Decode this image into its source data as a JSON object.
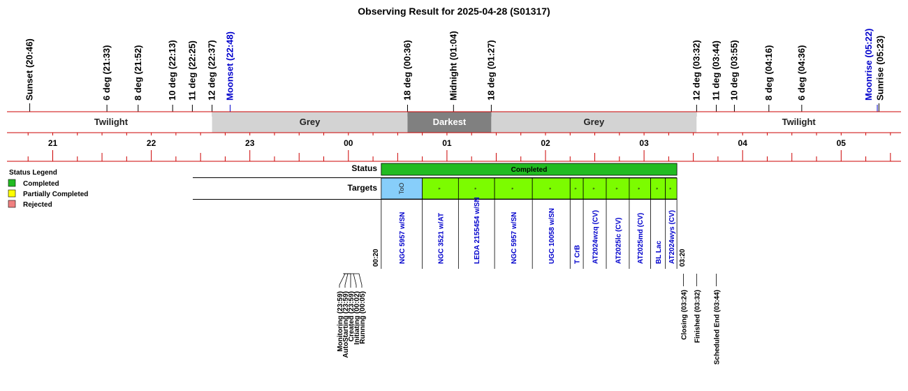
{
  "title": "Observing Result for 2025-04-28 (S01317)",
  "colors": {
    "axis_line": "#cc0000",
    "twilight_bg": "#ffffff",
    "grey_bg": "#d3d3d3",
    "darkest_bg": "#808080",
    "moon_text": "#0000cc",
    "target_text": "#0000cc",
    "completed": "#22bb22",
    "partial": "#ffff00",
    "rejected": "#f08080",
    "target_fill": "#7cfc00",
    "too_fill": "#87cefa"
  },
  "chart_data": {
    "type": "timeline",
    "title": "Observing Result for 2025-04-28 (S01317)",
    "x_axis": {
      "unit": "hour",
      "range": [
        "20:34",
        "05:50"
      ],
      "tick_labels": [
        "21",
        "22",
        "23",
        "00",
        "01",
        "02",
        "03",
        "04",
        "05"
      ]
    },
    "events": [
      {
        "label": "Sunset (20:46)",
        "time": "20:46",
        "kind": "sun"
      },
      {
        "label": "6 deg (21:33)",
        "time": "21:33",
        "kind": "sun"
      },
      {
        "label": "8 deg (21:52)",
        "time": "21:52",
        "kind": "sun"
      },
      {
        "label": "10 deg (22:13)",
        "time": "22:13",
        "kind": "sun"
      },
      {
        "label": "11 deg (22:25)",
        "time": "22:25",
        "kind": "sun"
      },
      {
        "label": "12 deg (22:37)",
        "time": "22:37",
        "kind": "sun"
      },
      {
        "label": "Moonset (22:48)",
        "time": "22:48",
        "kind": "moon"
      },
      {
        "label": "18 deg (00:36)",
        "time": "00:36",
        "kind": "sun"
      },
      {
        "label": "Midnight (01:04)",
        "time": "01:04",
        "kind": "sun"
      },
      {
        "label": "18 deg (01:27)",
        "time": "01:27",
        "kind": "sun"
      },
      {
        "label": "12 deg (03:32)",
        "time": "03:32",
        "kind": "sun"
      },
      {
        "label": "11 deg (03:44)",
        "time": "03:44",
        "kind": "sun"
      },
      {
        "label": "10 deg (03:55)",
        "time": "03:55",
        "kind": "sun"
      },
      {
        "label": "8 deg (04:16)",
        "time": "04:16",
        "kind": "sun"
      },
      {
        "label": "6 deg (04:36)",
        "time": "04:36",
        "kind": "sun"
      },
      {
        "label": "Moonrise (05:22)",
        "time": "05:22",
        "kind": "moon"
      },
      {
        "label": "Sunrise (05:23)",
        "time": "05:23",
        "kind": "sun"
      }
    ],
    "phases": [
      {
        "label": "Twilight",
        "start": "20:34",
        "end": "22:37",
        "style": "twilight"
      },
      {
        "label": "Grey",
        "start": "22:37",
        "end": "00:36",
        "style": "grey"
      },
      {
        "label": "Darkest",
        "start": "00:36",
        "end": "01:27",
        "style": "darkest"
      },
      {
        "label": "Grey",
        "start": "01:27",
        "end": "03:32",
        "style": "grey"
      },
      {
        "label": "Twilight",
        "start": "03:32",
        "end": "05:50",
        "style": "twilight"
      }
    ],
    "status": {
      "label": "Completed",
      "start": "00:20",
      "end": "03:20"
    },
    "targets": [
      {
        "name": "NGC 5957 w/SN",
        "start": "00:20",
        "end": "00:45",
        "marker": "ToO",
        "too": true
      },
      {
        "name": "NGC 3521 w/AT",
        "start": "00:45",
        "end": "01:07",
        "marker": "*",
        "too": false
      },
      {
        "name": "LEDA 2155454 w/SN",
        "start": "01:07",
        "end": "01:29",
        "marker": "*",
        "too": false
      },
      {
        "name": "NGC 5957 w/SN",
        "start": "01:29",
        "end": "01:52",
        "marker": "*",
        "too": false
      },
      {
        "name": "UGC 10058 w/SN",
        "start": "01:52",
        "end": "02:15",
        "marker": "*",
        "too": false
      },
      {
        "name": "T CrB",
        "start": "02:15",
        "end": "02:23",
        "marker": "*",
        "too": false
      },
      {
        "name": "AT2024wzq (CV)",
        "start": "02:23",
        "end": "02:37",
        "marker": "*",
        "too": false
      },
      {
        "name": "AT2025lc (CV)",
        "start": "02:37",
        "end": "02:51",
        "marker": "*",
        "too": false
      },
      {
        "name": "AT2025md (CV)",
        "start": "02:51",
        "end": "03:04",
        "marker": "*",
        "too": false
      },
      {
        "name": "BL Lac",
        "start": "03:04",
        "end": "03:13",
        "marker": "*",
        "too": false
      },
      {
        "name": "AT2024wys (CV)",
        "start": "03:13",
        "end": "03:20",
        "marker": "*",
        "too": false
      }
    ],
    "window_labels": {
      "start": "00:20",
      "end": "03:20"
    },
    "state_events_left": [
      {
        "label": "Monitoring (23:59)",
        "time": "23:59"
      },
      {
        "label": "AutoStarting (23:59)",
        "time": "23:59"
      },
      {
        "label": "Created (23:59)",
        "time": "23:59"
      },
      {
        "label": "Initiating (00:02)",
        "time": "00:02"
      },
      {
        "label": "Running (00:05)",
        "time": "00:05"
      }
    ],
    "state_events_right": [
      {
        "label": "Closing (03:24)",
        "time": "03:24"
      },
      {
        "label": "Finished (03:32)",
        "time": "03:32"
      },
      {
        "label": "Scheduled End (03:44)",
        "time": "03:44"
      }
    ]
  },
  "rows": {
    "status_label": "Status",
    "targets_label": "Targets"
  },
  "legend": {
    "title": "Status Legend",
    "items": [
      {
        "label": "Completed",
        "color": "#22bb22"
      },
      {
        "label": "Partially Completed",
        "color": "#ffff00"
      },
      {
        "label": "Rejected",
        "color": "#f08080"
      }
    ]
  }
}
